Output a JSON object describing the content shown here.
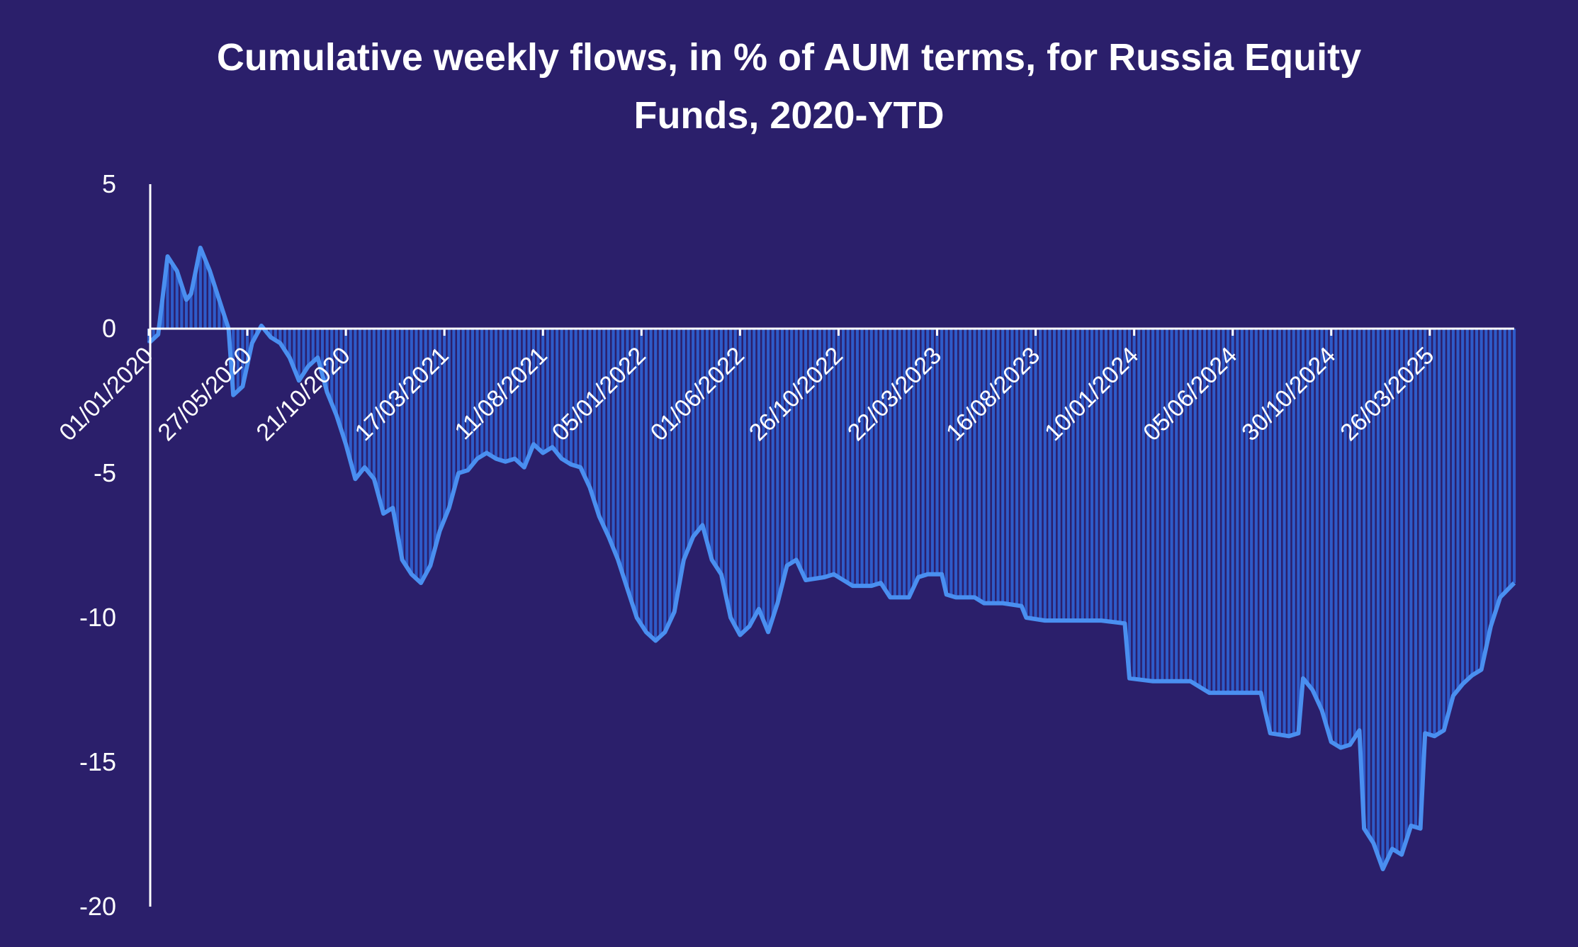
{
  "chart_data": {
    "type": "bar",
    "title": "Cumulative weekly  flows, in % of AUM terms, for Russia Equity\nFunds, 2020-YTD",
    "xlabel": "",
    "ylabel": "",
    "ylim": [
      -20,
      5
    ],
    "yticks": [
      5,
      0,
      -5,
      -10,
      -15,
      -20
    ],
    "ytick_labels": [
      "5",
      "0",
      "-5",
      "-10",
      "-15",
      "-20"
    ],
    "x_start": "2020-01-01",
    "x_end": "2025-07-30",
    "x_tick_dates": [
      "2020-01-01",
      "2020-05-27",
      "2020-10-21",
      "2021-03-17",
      "2021-08-11",
      "2022-01-05",
      "2022-06-01",
      "2022-10-26",
      "2023-03-22",
      "2023-08-16",
      "2024-01-10",
      "2024-06-05",
      "2024-10-30",
      "2025-03-26"
    ],
    "x_tick_labels": [
      "01/01/2020",
      "27/05/2020",
      "21/10/2020",
      "17/03/2021",
      "11/08/2021",
      "05/01/2022",
      "01/06/2022",
      "26/10/2022",
      "22/03/2023",
      "16/08/2023",
      "10/01/2024",
      "05/06/2024",
      "30/10/2024",
      "26/03/2025"
    ],
    "grid": false,
    "legend": "none",
    "series": [
      {
        "points": [
          [
            "2020-01-01",
            -0.5
          ],
          [
            "2020-01-15",
            -0.2
          ],
          [
            "2020-01-29",
            2.5
          ],
          [
            "2020-02-12",
            2.0
          ],
          [
            "2020-02-26",
            1.0
          ],
          [
            "2020-03-04",
            1.2
          ],
          [
            "2020-03-18",
            2.8
          ],
          [
            "2020-04-01",
            2.0
          ],
          [
            "2020-04-15",
            1.0
          ],
          [
            "2020-04-29",
            0.0
          ],
          [
            "2020-05-06",
            -2.3
          ],
          [
            "2020-05-20",
            -2.0
          ],
          [
            "2020-06-03",
            -0.5
          ],
          [
            "2020-06-17",
            0.1
          ],
          [
            "2020-07-01",
            -0.3
          ],
          [
            "2020-07-15",
            -0.5
          ],
          [
            "2020-07-29",
            -1.0
          ],
          [
            "2020-08-12",
            -1.8
          ],
          [
            "2020-08-26",
            -1.3
          ],
          [
            "2020-09-09",
            -1.0
          ],
          [
            "2020-09-23",
            -2.2
          ],
          [
            "2020-10-07",
            -3.0
          ],
          [
            "2020-10-21",
            -4.0
          ],
          [
            "2020-11-04",
            -5.2
          ],
          [
            "2020-11-18",
            -4.8
          ],
          [
            "2020-12-02",
            -5.2
          ],
          [
            "2020-12-16",
            -6.4
          ],
          [
            "2020-12-30",
            -6.2
          ],
          [
            "2021-01-13",
            -8.0
          ],
          [
            "2021-01-27",
            -8.5
          ],
          [
            "2021-02-10",
            -8.8
          ],
          [
            "2021-02-24",
            -8.2
          ],
          [
            "2021-03-10",
            -7.0
          ],
          [
            "2021-03-24",
            -6.2
          ],
          [
            "2021-04-07",
            -5.0
          ],
          [
            "2021-04-21",
            -4.9
          ],
          [
            "2021-05-05",
            -4.5
          ],
          [
            "2021-05-19",
            -4.3
          ],
          [
            "2021-06-02",
            -4.5
          ],
          [
            "2021-06-16",
            -4.6
          ],
          [
            "2021-06-30",
            -4.5
          ],
          [
            "2021-07-14",
            -4.8
          ],
          [
            "2021-07-28",
            -4.0
          ],
          [
            "2021-08-11",
            -4.3
          ],
          [
            "2021-08-25",
            -4.1
          ],
          [
            "2021-09-08",
            -4.5
          ],
          [
            "2021-09-22",
            -4.7
          ],
          [
            "2021-10-06",
            -4.8
          ],
          [
            "2021-10-20",
            -5.5
          ],
          [
            "2021-11-03",
            -6.5
          ],
          [
            "2021-11-17",
            -7.2
          ],
          [
            "2021-12-01",
            -8.0
          ],
          [
            "2021-12-15",
            -9.0
          ],
          [
            "2021-12-29",
            -10.0
          ],
          [
            "2022-01-12",
            -10.5
          ],
          [
            "2022-01-26",
            -10.8
          ],
          [
            "2022-02-09",
            -10.5
          ],
          [
            "2022-02-23",
            -9.8
          ],
          [
            "2022-03-09",
            -8.0
          ],
          [
            "2022-03-23",
            -7.2
          ],
          [
            "2022-04-06",
            -6.8
          ],
          [
            "2022-04-20",
            -8.0
          ],
          [
            "2022-05-04",
            -8.5
          ],
          [
            "2022-05-18",
            -10.0
          ],
          [
            "2022-06-01",
            -10.6
          ],
          [
            "2022-06-15",
            -10.3
          ],
          [
            "2022-06-29",
            -9.7
          ],
          [
            "2022-07-13",
            -10.5
          ],
          [
            "2022-07-27",
            -9.5
          ],
          [
            "2022-08-10",
            -8.2
          ],
          [
            "2022-08-24",
            -8.0
          ],
          [
            "2022-09-07",
            -8.7
          ],
          [
            "2022-10-05",
            -8.6
          ],
          [
            "2022-10-19",
            -8.5
          ],
          [
            "2022-11-02",
            -8.7
          ],
          [
            "2022-11-16",
            -8.9
          ],
          [
            "2022-12-14",
            -8.9
          ],
          [
            "2022-12-28",
            -8.8
          ],
          [
            "2023-01-11",
            -9.3
          ],
          [
            "2023-02-08",
            -9.3
          ],
          [
            "2023-02-22",
            -8.6
          ],
          [
            "2023-03-08",
            -8.5
          ],
          [
            "2023-03-29",
            -8.5
          ],
          [
            "2023-04-05",
            -9.2
          ],
          [
            "2023-04-19",
            -9.3
          ],
          [
            "2023-05-17",
            -9.3
          ],
          [
            "2023-05-31",
            -9.5
          ],
          [
            "2023-06-28",
            -9.5
          ],
          [
            "2023-07-26",
            -9.6
          ],
          [
            "2023-08-02",
            -10.0
          ],
          [
            "2023-08-30",
            -10.1
          ],
          [
            "2023-09-27",
            -10.1
          ],
          [
            "2023-11-22",
            -10.1
          ],
          [
            "2023-12-27",
            -10.2
          ],
          [
            "2024-01-03",
            -12.1
          ],
          [
            "2024-02-07",
            -12.2
          ],
          [
            "2024-04-03",
            -12.2
          ],
          [
            "2024-04-17",
            -12.4
          ],
          [
            "2024-05-01",
            -12.6
          ],
          [
            "2024-07-17",
            -12.6
          ],
          [
            "2024-07-31",
            -14.0
          ],
          [
            "2024-08-28",
            -14.1
          ],
          [
            "2024-09-11",
            -14.0
          ],
          [
            "2024-09-18",
            -12.1
          ],
          [
            "2024-10-02",
            -12.5
          ],
          [
            "2024-10-16",
            -13.2
          ],
          [
            "2024-10-30",
            -14.3
          ],
          [
            "2024-11-13",
            -14.5
          ],
          [
            "2024-11-27",
            -14.4
          ],
          [
            "2024-12-11",
            -13.9
          ],
          [
            "2024-12-18",
            -17.3
          ],
          [
            "2025-01-01",
            -17.8
          ],
          [
            "2025-01-15",
            -18.7
          ],
          [
            "2025-01-29",
            -18.0
          ],
          [
            "2025-02-12",
            -18.2
          ],
          [
            "2025-02-26",
            -17.2
          ],
          [
            "2025-03-12",
            -17.3
          ],
          [
            "2025-03-19",
            -14.0
          ],
          [
            "2025-04-02",
            -14.1
          ],
          [
            "2025-04-16",
            -13.9
          ],
          [
            "2025-04-30",
            -12.7
          ],
          [
            "2025-05-14",
            -12.3
          ],
          [
            "2025-05-28",
            -12.0
          ],
          [
            "2025-06-11",
            -11.8
          ],
          [
            "2025-06-25",
            -10.3
          ],
          [
            "2025-07-09",
            -9.3
          ],
          [
            "2025-07-30",
            -8.8
          ]
        ]
      }
    ]
  },
  "colors": {
    "background": "#2b1f6b",
    "bar": "#2e5bc9",
    "line": "#4a8ff0",
    "axis": "#ffffff",
    "text": "#ffffff"
  }
}
